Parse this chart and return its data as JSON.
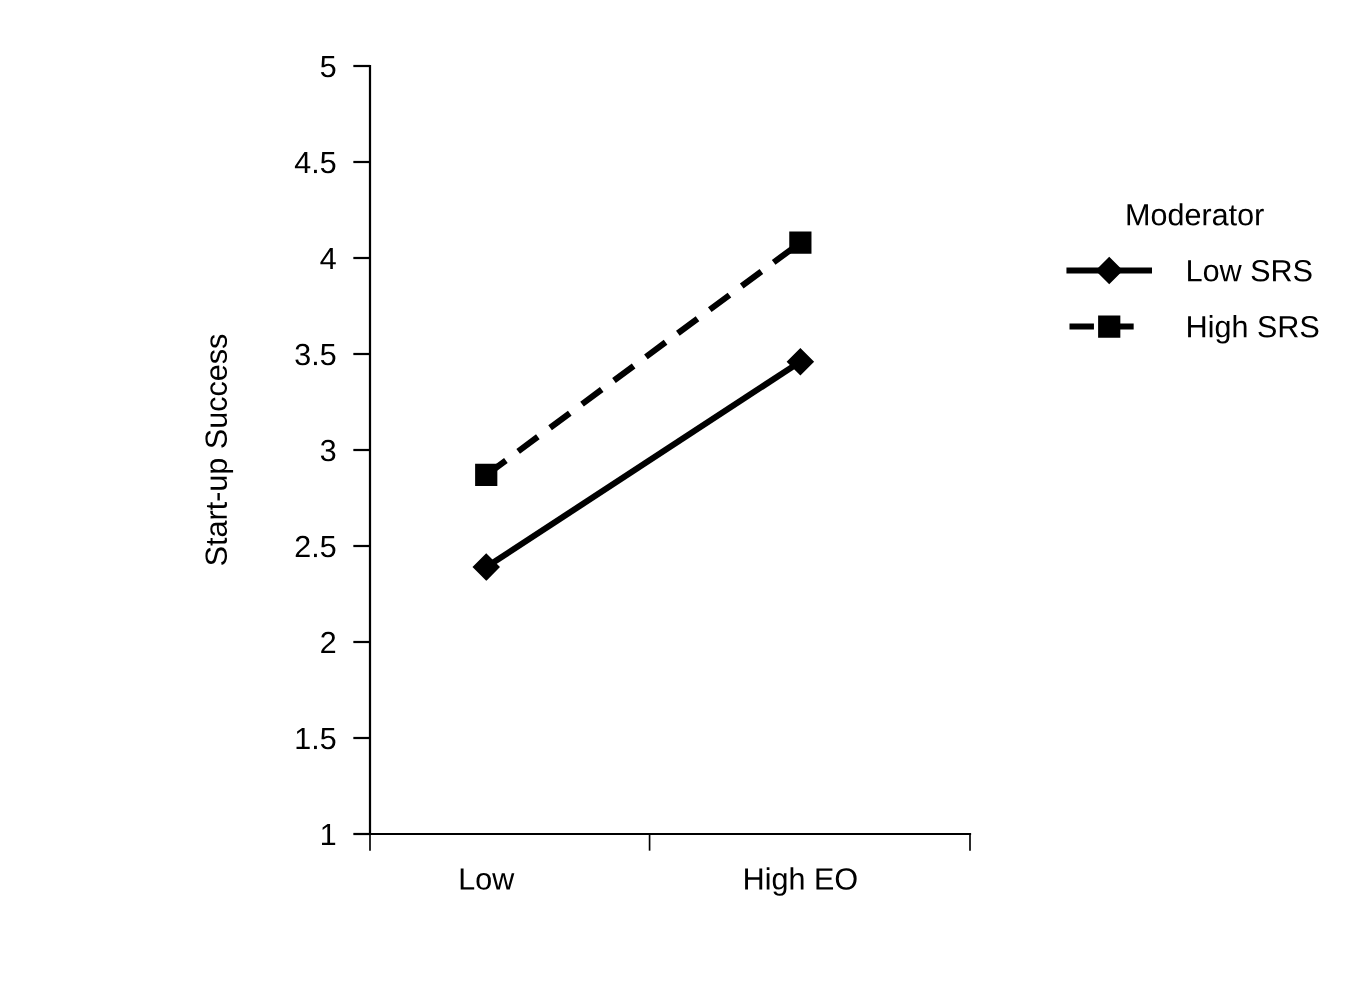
{
  "chart_data": {
    "type": "line",
    "ylabel": "Start-up Success",
    "legend_title": "Moderator",
    "legend": "right",
    "categories": [
      "Low",
      "High EO"
    ],
    "ylim": [
      1,
      5
    ],
    "yticks": [
      1,
      1.5,
      2,
      2.5,
      3,
      3.5,
      4,
      4.5,
      5
    ],
    "grid": false,
    "series": [
      {
        "name": "Low SRS",
        "color": "#000000",
        "values": [
          2.39,
          3.46
        ],
        "marker": "diamond",
        "line_style": "solid"
      },
      {
        "name": "High SRS",
        "color": "#000000",
        "values": [
          2.87,
          4.08
        ],
        "marker": "square",
        "line_style": "dashed"
      }
    ]
  }
}
